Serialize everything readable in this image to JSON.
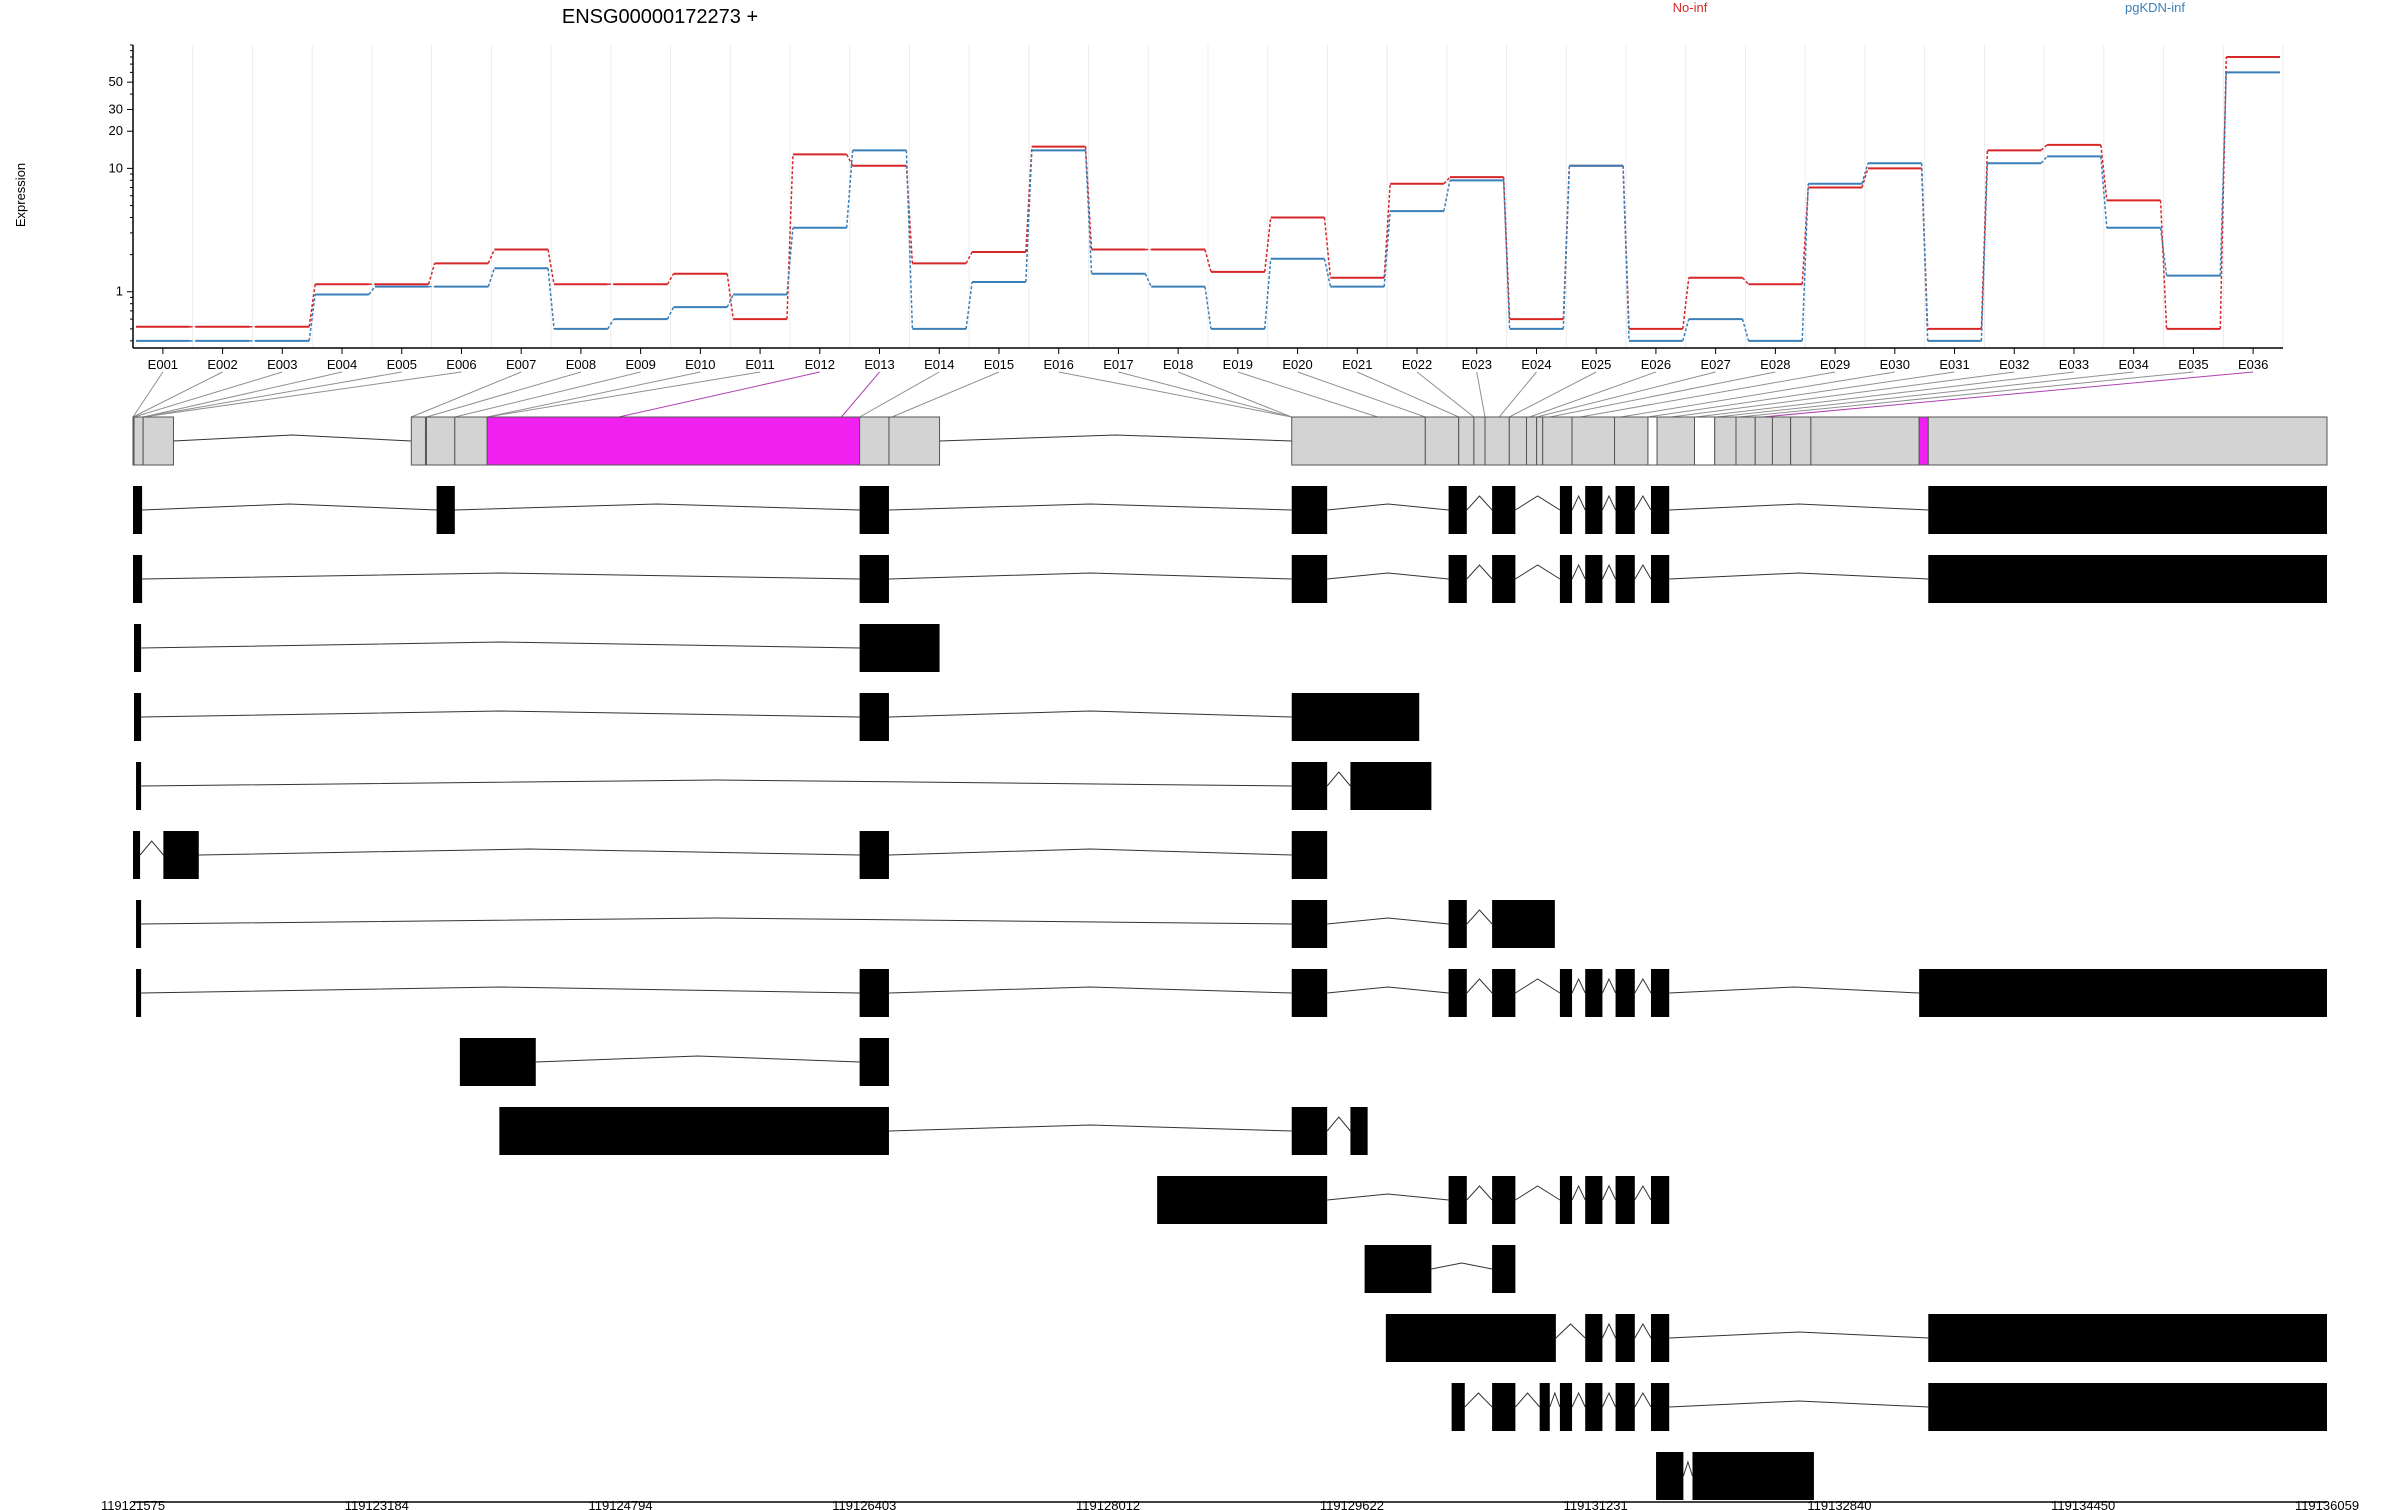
{
  "chart_data": {
    "type": "line",
    "title": "ENSG00000172273 +",
    "ylabel": "Expression",
    "xlabel": "",
    "y_scale": "log",
    "ylim": [
      0.35,
      100
    ],
    "y_ticks": [
      1,
      10,
      20,
      30,
      50
    ],
    "grid": "vertical",
    "legend_position": "top",
    "categories": [
      "E001",
      "E002",
      "E003",
      "E004",
      "E005",
      "E006",
      "E007",
      "E008",
      "E009",
      "E010",
      "E011",
      "E012",
      "E013",
      "E014",
      "E015",
      "E016",
      "E017",
      "E018",
      "E019",
      "E020",
      "E021",
      "E022",
      "E023",
      "E024",
      "E025",
      "E026",
      "E027",
      "E028",
      "E029",
      "E030",
      "E031",
      "E032",
      "E033",
      "E034",
      "E035",
      "E036"
    ],
    "series": [
      {
        "name": "No-inf",
        "color": "#d62728",
        "values": [
          0.52,
          0.52,
          0.52,
          1.15,
          1.15,
          1.7,
          2.2,
          1.15,
          1.15,
          1.4,
          0.6,
          13,
          10.5,
          1.7,
          2.1,
          15,
          2.2,
          2.2,
          1.45,
          4,
          1.3,
          7.5,
          8.5,
          0.6,
          10.5,
          0.5,
          1.3,
          1.15,
          7,
          10,
          0.5,
          14,
          15.5,
          5.5,
          0.5,
          80
        ]
      },
      {
        "name": "pgKDN-inf",
        "color": "#3b7fb8",
        "values": [
          0.4,
          0.4,
          0.4,
          0.95,
          1.1,
          1.1,
          1.55,
          0.5,
          0.6,
          0.75,
          0.95,
          3.3,
          14,
          0.5,
          1.2,
          14,
          1.4,
          1.1,
          0.5,
          1.85,
          1.1,
          4.5,
          8,
          0.5,
          10.5,
          0.4,
          0.6,
          0.4,
          7.5,
          11,
          0.4,
          11,
          12.5,
          3.3,
          1.35,
          60
        ]
      }
    ],
    "genomic_axis": {
      "ticks": [
        "119121575",
        "119123184",
        "119124794",
        "119126403",
        "119128012",
        "119129622",
        "119131231",
        "119132840",
        "119134450",
        "119136059"
      ],
      "start": 119121575,
      "end": 119136059
    },
    "gene_model": {
      "exons": [
        [
          0,
          1
        ],
        [
          1,
          10
        ],
        [
          10,
          40
        ],
        [
          275,
          289
        ],
        [
          290,
          318
        ],
        [
          318,
          350
        ],
        [
          350,
          718
        ],
        [
          718,
          747
        ],
        [
          747,
          797
        ],
        [
          1145,
          1277
        ],
        [
          1277,
          1310
        ],
        [
          1310,
          1325
        ],
        [
          1325,
          1336
        ],
        [
          1336,
          1360
        ],
        [
          1360,
          1377
        ],
        [
          1377,
          1387
        ],
        [
          1387,
          1393
        ],
        [
          1393,
          1422
        ],
        [
          1422,
          1464
        ],
        [
          1464,
          1497
        ],
        [
          1497,
          1506
        ],
        [
          1506,
          1543
        ],
        [
          1543,
          1563
        ],
        [
          1563,
          1584
        ],
        [
          1584,
          1603
        ],
        [
          1603,
          1620
        ],
        [
          1620,
          1638
        ],
        [
          1638,
          1658
        ],
        [
          1658,
          1765
        ],
        [
          1765,
          1774
        ],
        [
          1774,
          2168
        ]
      ],
      "highlighted_exon_indices": [
        6,
        29
      ],
      "blank_exon_indices": [
        20,
        22
      ],
      "exon_labels": [
        "E001",
        "E002",
        "E003",
        "E004",
        "E005",
        "E006",
        "E007",
        "E008",
        "E009",
        "E010",
        "E011",
        "E012",
        "E013",
        "E014",
        "E015",
        "E016",
        "E017",
        "E018",
        "E019",
        "E020",
        "E021",
        "E022",
        "E023",
        "E024",
        "E025",
        "E026",
        "E027",
        "E028",
        "E029",
        "E030",
        "E031",
        "E032",
        "E033",
        "E034",
        "E035",
        "E036"
      ],
      "exon_label_targets": [
        0,
        0,
        1,
        10,
        10,
        10,
        275,
        290,
        318,
        350,
        350,
        480,
        700,
        718,
        750,
        1145,
        1145,
        1145,
        1230,
        1277,
        1310,
        1325,
        1336,
        1350,
        1360,
        1380,
        1387,
        1400,
        1430,
        1470,
        1497,
        1520,
        1544,
        1565,
        1587,
        1610
      ],
      "highlighted_label_indices": [
        11,
        12,
        35
      ]
    },
    "transcripts": [
      [
        [
          0,
          9
        ],
        [
          300,
          318
        ],
        [
          718,
          747
        ],
        [
          1145,
          1180
        ],
        [
          1300,
          1318
        ],
        [
          1343,
          1366
        ],
        [
          1410,
          1422
        ],
        [
          1435,
          1452
        ],
        [
          1465,
          1484
        ],
        [
          1500,
          1518
        ],
        [
          1774,
          2168
        ]
      ],
      [
        [
          0,
          9
        ],
        [
          718,
          747
        ],
        [
          1145,
          1180
        ],
        [
          1300,
          1318
        ],
        [
          1343,
          1366
        ],
        [
          1410,
          1422
        ],
        [
          1435,
          1452
        ],
        [
          1465,
          1484
        ],
        [
          1500,
          1518
        ],
        [
          1774,
          2168
        ]
      ],
      [
        [
          1,
          8
        ],
        [
          718,
          797
        ]
      ],
      [
        [
          1,
          8
        ],
        [
          718,
          747
        ],
        [
          1145,
          1271
        ]
      ],
      [
        [
          3,
          8
        ],
        [
          1145,
          1180
        ],
        [
          1203,
          1283
        ]
      ],
      [
        [
          0,
          7
        ],
        [
          30,
          65
        ],
        [
          718,
          747
        ],
        [
          1145,
          1180
        ]
      ],
      [
        [
          3,
          8
        ],
        [
          1145,
          1180
        ],
        [
          1300,
          1318
        ],
        [
          1343,
          1405
        ]
      ],
      [
        [
          3,
          8
        ],
        [
          718,
          747
        ],
        [
          1145,
          1180
        ],
        [
          1300,
          1318
        ],
        [
          1343,
          1366
        ],
        [
          1410,
          1422
        ],
        [
          1435,
          1452
        ],
        [
          1465,
          1484
        ],
        [
          1500,
          1518
        ],
        [
          1765,
          2168
        ]
      ],
      [
        [
          323,
          398
        ],
        [
          718,
          747
        ]
      ],
      [
        [
          362,
          747
        ],
        [
          1145,
          1180
        ],
        [
          1203,
          1220
        ]
      ],
      [
        [
          1012,
          1180
        ],
        [
          1300,
          1318
        ],
        [
          1343,
          1366
        ],
        [
          1410,
          1422
        ],
        [
          1435,
          1452
        ],
        [
          1465,
          1484
        ],
        [
          1500,
          1518
        ]
      ],
      [
        [
          1217,
          1283
        ],
        [
          1343,
          1366
        ]
      ],
      [
        [
          1238,
          1406
        ],
        [
          1435,
          1452
        ],
        [
          1465,
          1484
        ],
        [
          1500,
          1518
        ],
        [
          1774,
          2168
        ]
      ],
      [
        [
          1303,
          1316
        ],
        [
          1343,
          1366
        ],
        [
          1390,
          1400
        ],
        [
          1410,
          1422
        ],
        [
          1435,
          1452
        ],
        [
          1465,
          1484
        ],
        [
          1500,
          1518
        ],
        [
          1774,
          2168
        ]
      ],
      [
        [
          1505,
          1532
        ],
        [
          1541,
          1661
        ]
      ]
    ]
  }
}
